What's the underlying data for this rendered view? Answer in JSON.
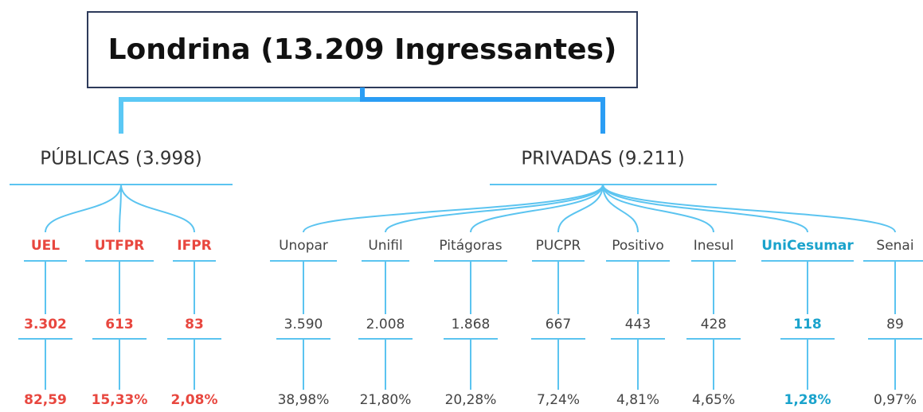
{
  "title": "Londrina (13.209 Ingressantes)",
  "groups": [
    {
      "label": "PÚBLICAS (3.998)",
      "color": "#e8473f",
      "items": [
        {
          "name": "UEL",
          "count": "3.302",
          "percent": "82,59"
        },
        {
          "name": "UTFPR",
          "count": "613",
          "percent": "15,33%"
        },
        {
          "name": "IFPR",
          "count": "83",
          "percent": "2,08%"
        }
      ]
    },
    {
      "label": "PRIVADAS (9.211)",
      "color": "#444444",
      "items": [
        {
          "name": "Unopar",
          "count": "3.590",
          "percent": "38,98%"
        },
        {
          "name": "Unifil",
          "count": "2.008",
          "percent": "21,80%"
        },
        {
          "name": "Pitágoras",
          "count": "1.868",
          "percent": "20,28%"
        },
        {
          "name": "PUCPR",
          "count": "667",
          "percent": "7,24%"
        },
        {
          "name": "Positivo",
          "count": "443",
          "percent": "4,81%"
        },
        {
          "name": "Inesul",
          "count": "428",
          "percent": "4,65%"
        },
        {
          "name": "UniCesumar",
          "count": "118",
          "percent": "1,28%",
          "color": "#1aa3cc"
        },
        {
          "name": "Senai",
          "count": "89",
          "percent": "0,97%"
        }
      ]
    }
  ]
}
